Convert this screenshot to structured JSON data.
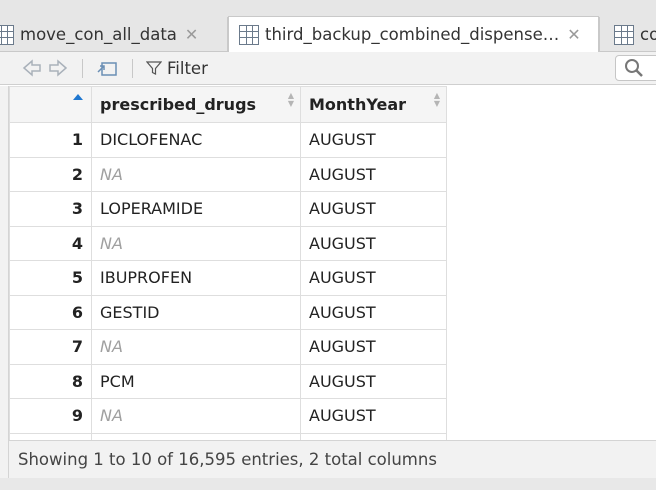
{
  "tabs": [
    {
      "label": "move_con_all_data"
    },
    {
      "label": "third_backup_combined_dispense…"
    },
    {
      "label": "co"
    }
  ],
  "toolbar": {
    "filter_label": "Filter"
  },
  "table": {
    "columns": [
      "",
      "prescribed_drugs",
      "MonthYear"
    ],
    "rows": [
      {
        "num": "1",
        "drug": "DICLOFENAC",
        "month": "AUGUST",
        "na": false
      },
      {
        "num": "2",
        "drug": "NA",
        "month": "AUGUST",
        "na": true
      },
      {
        "num": "3",
        "drug": "LOPERAMIDE",
        "month": "AUGUST",
        "na": false
      },
      {
        "num": "4",
        "drug": "NA",
        "month": "AUGUST",
        "na": true
      },
      {
        "num": "5",
        "drug": "IBUPROFEN",
        "month": "AUGUST",
        "na": false
      },
      {
        "num": "6",
        "drug": "GESTID",
        "month": "AUGUST",
        "na": false
      },
      {
        "num": "7",
        "drug": "NA",
        "month": "AUGUST",
        "na": true
      },
      {
        "num": "8",
        "drug": "PCM",
        "month": "AUGUST",
        "na": false
      },
      {
        "num": "9",
        "drug": "NA",
        "month": "AUGUST",
        "na": true
      }
    ]
  },
  "status": {
    "text": "Showing 1 to 10 of 16,595 entries, 2 total columns"
  }
}
